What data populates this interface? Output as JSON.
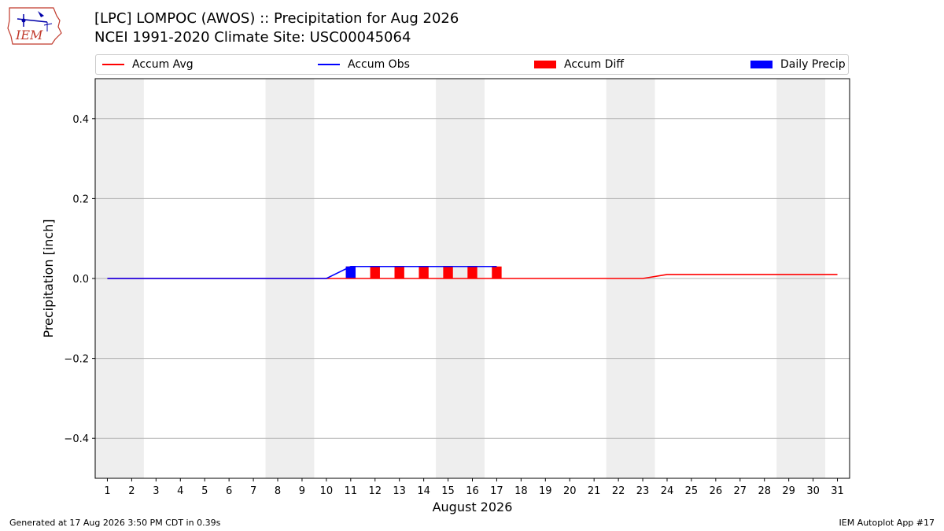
{
  "header": {
    "logo_text": "IEM",
    "title": "[LPC] LOMPOC (AWOS) :: Precipitation for Aug 2026",
    "subtitle": "NCEI 1991-2020 Climate Site: USC00045064"
  },
  "legend": [
    {
      "label": "Accum Avg",
      "kind": "line",
      "color": "#ff0000"
    },
    {
      "label": "Accum Obs",
      "kind": "line",
      "color": "#0000ff"
    },
    {
      "label": "Accum Diff",
      "kind": "box",
      "color": "#ff0000"
    },
    {
      "label": "Daily Precip",
      "kind": "box",
      "color": "#0000ff"
    }
  ],
  "chart_data": {
    "type": "bar",
    "xlabel": "August 2026",
    "ylabel": "Precipitation [inch]",
    "xlim": [
      0.5,
      31.5
    ],
    "ylim": [
      -0.5,
      0.5
    ],
    "yticks": [
      0.4,
      0.2,
      0.0,
      -0.2,
      -0.4
    ],
    "ytick_labels": [
      "0.4",
      "0.2",
      "0.0",
      "−0.2",
      "−0.4"
    ],
    "days": [
      1,
      2,
      3,
      4,
      5,
      6,
      7,
      8,
      9,
      10,
      11,
      12,
      13,
      14,
      15,
      16,
      17,
      18,
      19,
      20,
      21,
      22,
      23,
      24,
      25,
      26,
      27,
      28,
      29,
      30,
      31
    ],
    "weekend_shading": [
      [
        1,
        2
      ],
      [
        8,
        9
      ],
      [
        15,
        16
      ],
      [
        22,
        23
      ],
      [
        29,
        30
      ]
    ],
    "grid": "horizontal",
    "series": [
      {
        "name": "Accum Avg",
        "kind": "line",
        "color": "#ff0000",
        "x": [
          1,
          2,
          3,
          4,
          5,
          6,
          7,
          8,
          9,
          10,
          11,
          12,
          13,
          14,
          15,
          16,
          17,
          18,
          19,
          20,
          21,
          22,
          23,
          24,
          25,
          26,
          27,
          28,
          29,
          30,
          31
        ],
        "values": [
          0,
          0,
          0,
          0,
          0,
          0,
          0,
          0,
          0,
          0,
          0,
          0,
          0,
          0,
          0,
          0,
          0,
          0,
          0,
          0,
          0,
          0,
          0,
          0.01,
          0.01,
          0.01,
          0.01,
          0.01,
          0.01,
          0.01,
          0.01
        ]
      },
      {
        "name": "Accum Obs",
        "kind": "line",
        "color": "#0000ff",
        "x": [
          1,
          2,
          3,
          4,
          5,
          6,
          7,
          8,
          9,
          10,
          11,
          12,
          13,
          14,
          15,
          16,
          17
        ],
        "values": [
          0,
          0,
          0,
          0,
          0,
          0,
          0,
          0,
          0,
          0,
          0.03,
          0.03,
          0.03,
          0.03,
          0.03,
          0.03,
          0.03
        ]
      },
      {
        "name": "Accum Diff",
        "kind": "bar",
        "color": "#ff0000",
        "x": [
          11,
          12,
          13,
          14,
          15,
          16,
          17
        ],
        "values": [
          0.03,
          0.03,
          0.03,
          0.03,
          0.03,
          0.03,
          0.03
        ]
      },
      {
        "name": "Daily Precip",
        "kind": "bar",
        "color": "#0000ff",
        "x": [
          11
        ],
        "values": [
          0.03
        ]
      }
    ]
  },
  "footer": {
    "generated": "Generated at 17 Aug 2026 3:50 PM CDT in 0.39s",
    "app": "IEM Autoplot App #17"
  }
}
